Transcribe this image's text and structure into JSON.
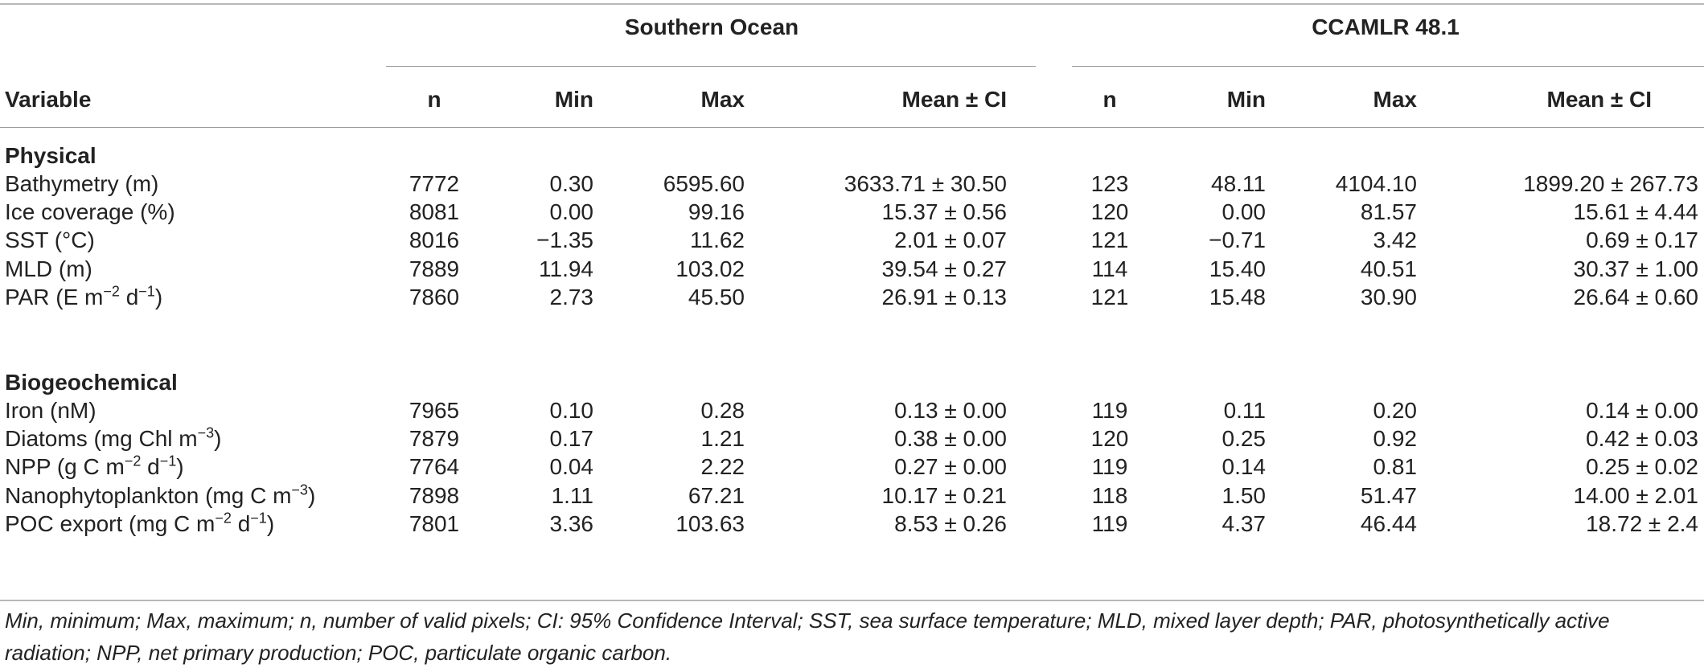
{
  "groups": {
    "southern_ocean": "Southern Ocean",
    "ccamlr": "CCAMLR 48.1"
  },
  "headers": {
    "variable": "Variable",
    "n": "n",
    "min": "Min",
    "max": "Max",
    "mean_ci": "Mean ± CI"
  },
  "sections": {
    "physical": "Physical",
    "biogeochemical": "Biogeochemical"
  },
  "physical_rows": [
    {
      "label": "Bathymetry (m)",
      "so": [
        "7772",
        "0.30",
        "6595.60",
        "3633.71 ± 30.50"
      ],
      "cc": [
        "123",
        "48.11",
        "4104.10",
        "1899.20 ± 267.73"
      ]
    },
    {
      "label": "Ice coverage (%)",
      "so": [
        "8081",
        "0.00",
        "99.16",
        "15.37 ± 0.56"
      ],
      "cc": [
        "120",
        "0.00",
        "81.57",
        "15.61 ± 4.44"
      ]
    },
    {
      "label": "SST (°C)",
      "so": [
        "8016",
        "−1.35",
        "11.62",
        "2.01 ± 0.07"
      ],
      "cc": [
        "121",
        "−0.71",
        "3.42",
        "0.69 ± 0.17"
      ]
    },
    {
      "label": "MLD (m)",
      "so": [
        "7889",
        "11.94",
        "103.02",
        "39.54 ± 0.27"
      ],
      "cc": [
        "114",
        "15.40",
        "40.51",
        "30.37 ± 1.00"
      ]
    },
    {
      "label": "PAR (E m⁻² d⁻¹)",
      "so": [
        "7860",
        "2.73",
        "45.50",
        "26.91 ± 0.13"
      ],
      "cc": [
        "121",
        "15.48",
        "30.90",
        "26.64 ± 0.60"
      ]
    }
  ],
  "biogeochemical_rows": [
    {
      "label": "Iron (nM)",
      "so": [
        "7965",
        "0.10",
        "0.28",
        "0.13 ± 0.00"
      ],
      "cc": [
        "119",
        "0.11",
        "0.20",
        "0.14 ± 0.00"
      ]
    },
    {
      "label": "Diatoms (mg Chl m⁻³)",
      "so": [
        "7879",
        "0.17",
        "1.21",
        "0.38 ± 0.00"
      ],
      "cc": [
        "120",
        "0.25",
        "0.92",
        "0.42 ± 0.03"
      ]
    },
    {
      "label": "NPP (g C m⁻² d⁻¹)",
      "so": [
        "7764",
        "0.04",
        "2.22",
        "0.27 ± 0.00"
      ],
      "cc": [
        "119",
        "0.14",
        "0.81",
        "0.25 ± 0.02"
      ]
    },
    {
      "label": "Nanophytoplankton (mg C m⁻³)",
      "so": [
        "7898",
        "1.11",
        "67.21",
        "10.17 ± 0.21"
      ],
      "cc": [
        "118",
        "1.50",
        "51.47",
        "14.00 ± 2.01"
      ]
    },
    {
      "label": "POC export (mg C m⁻² d⁻¹)",
      "so": [
        "7801",
        "3.36",
        "103.63",
        "8.53 ± 0.26"
      ],
      "cc": [
        "119",
        "4.37",
        "46.44",
        "18.72 ± 2.4"
      ]
    }
  ],
  "footnote": "Min, minimum; Max, maximum; n, number of valid pixels; CI: 95% Confidence Interval; SST, sea surface temperature; MLD, mixed layer depth; PAR, photosynthetically active radiation; NPP, net primary production; POC, particulate organic carbon."
}
